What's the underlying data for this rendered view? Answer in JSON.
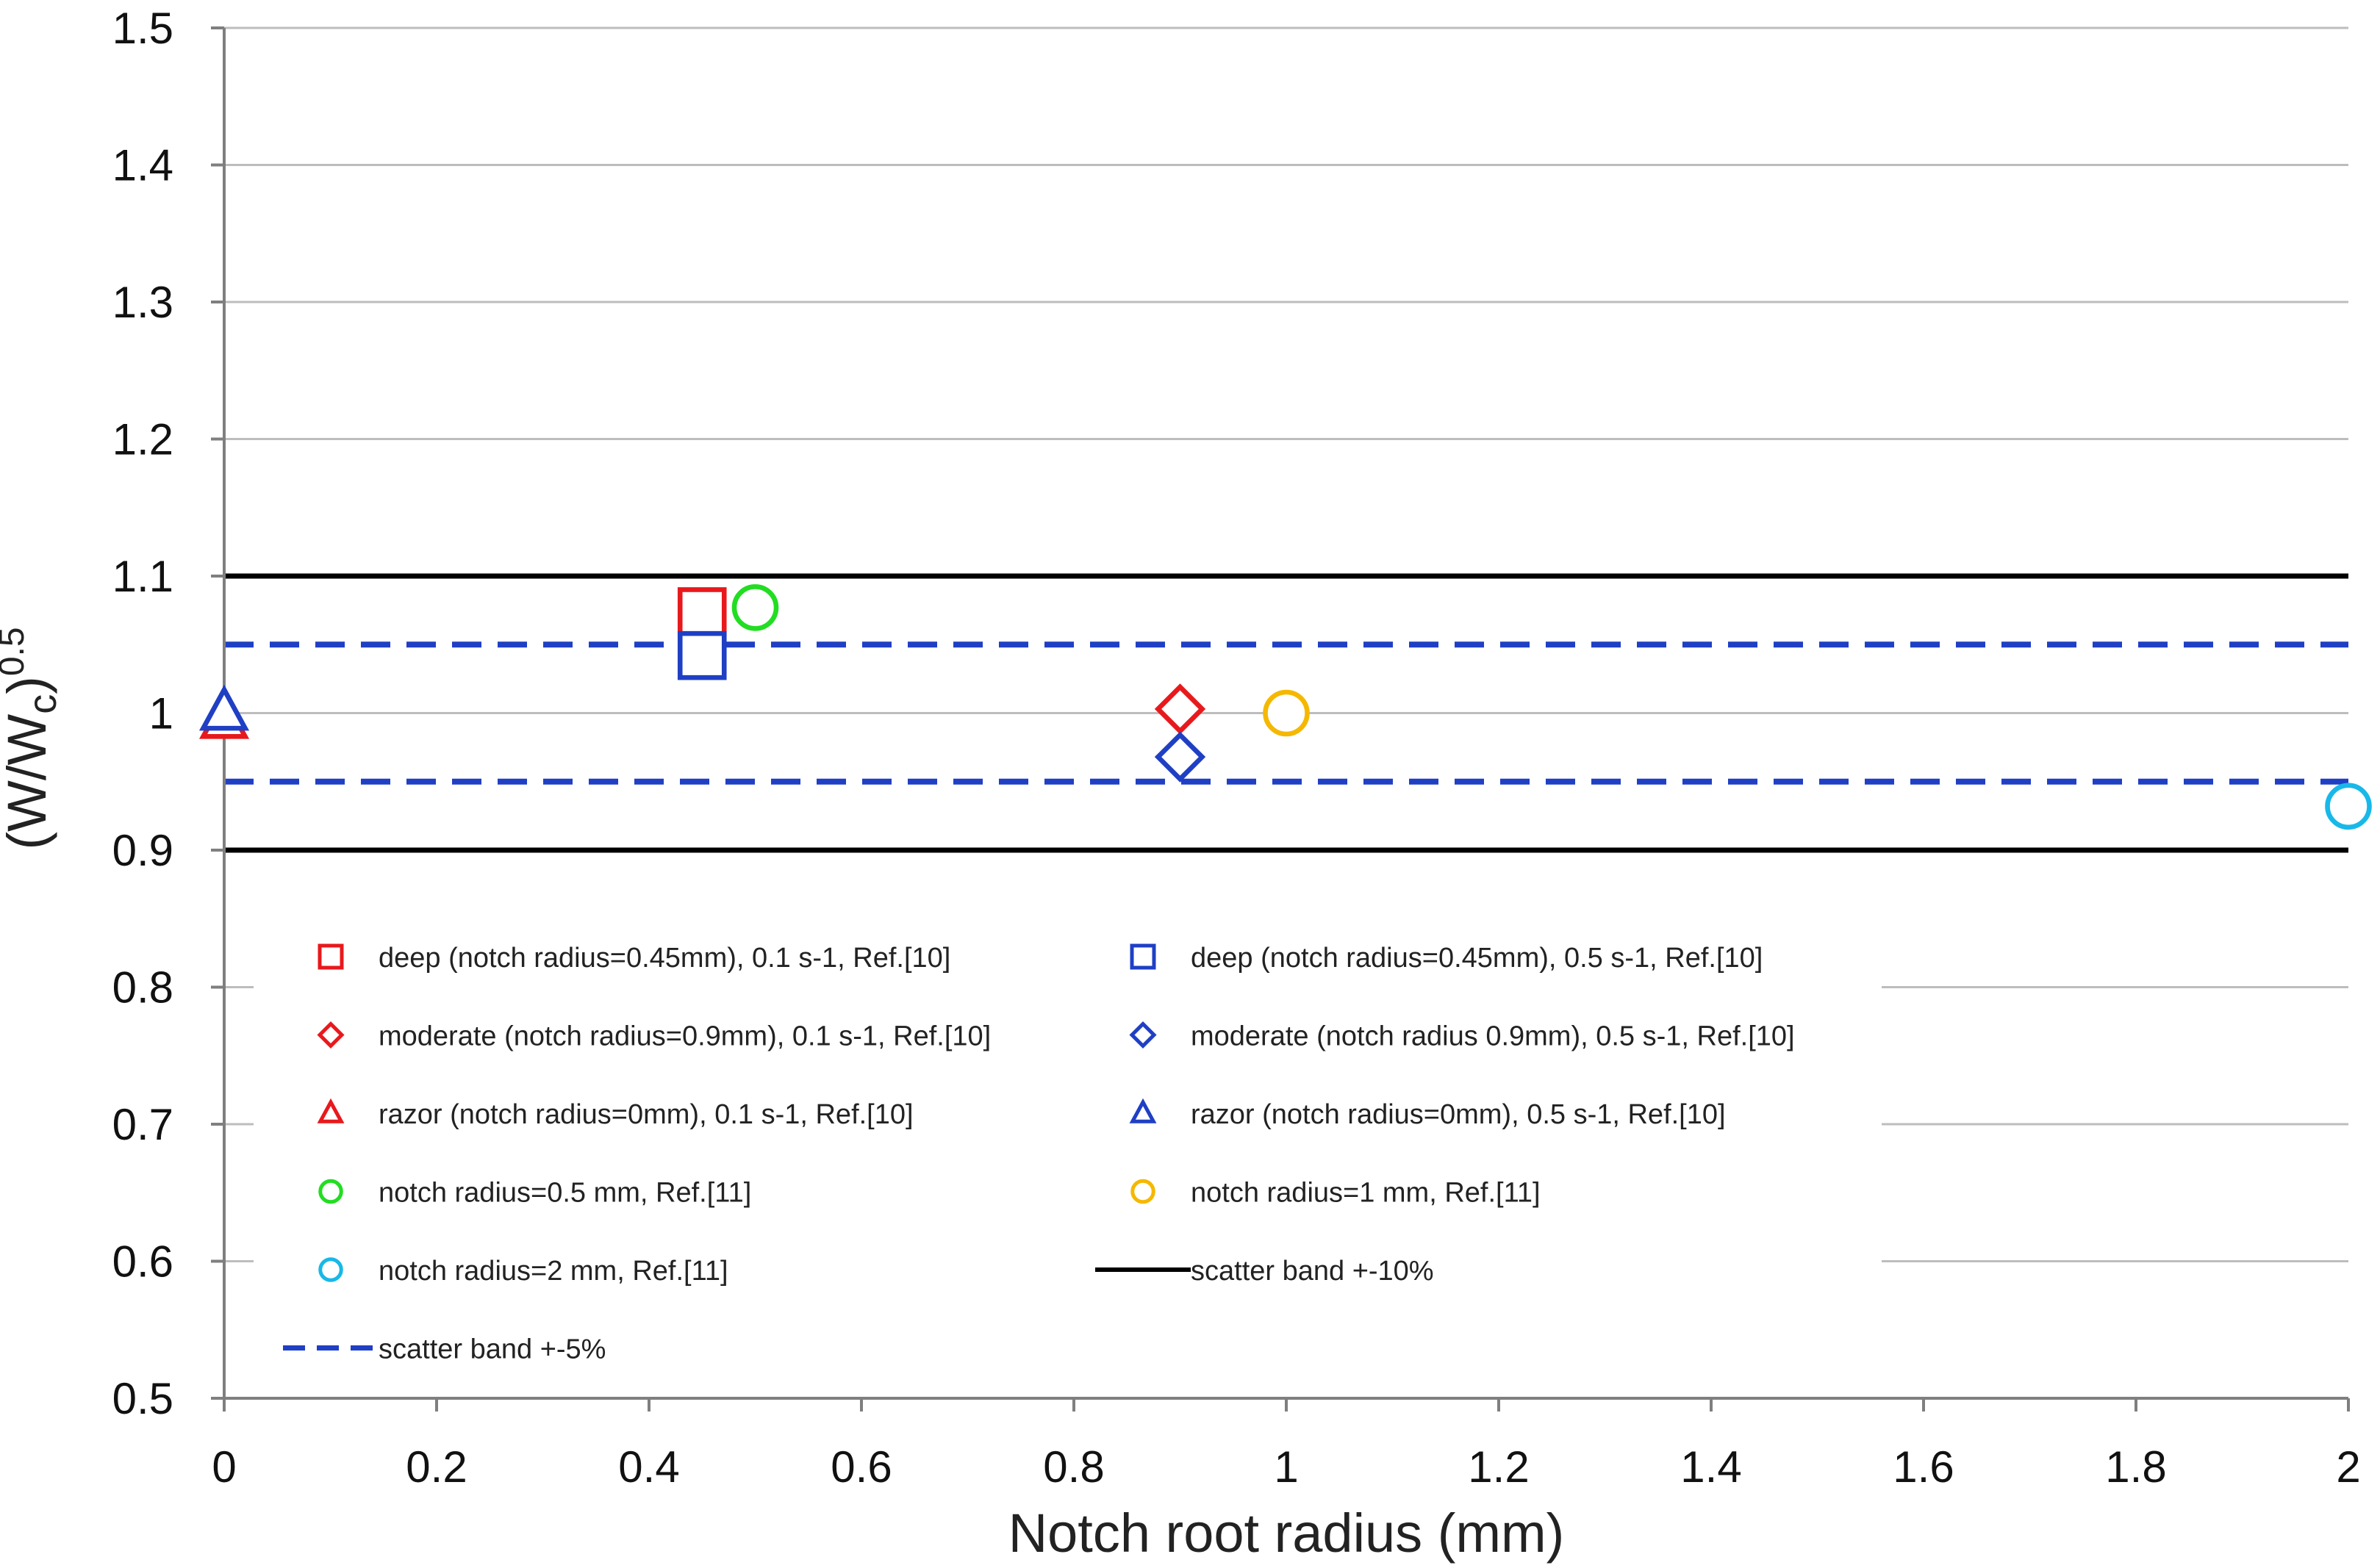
{
  "chart_data": {
    "type": "scatter",
    "title": "",
    "xlabel": "Notch root radius (mm)",
    "ylabel": {
      "base": "(W/W",
      "sub": "c",
      "tail": ")",
      "sup": "0.5"
    },
    "xlim": [
      0,
      2
    ],
    "ylim": [
      0.5,
      1.5
    ],
    "x_ticks": [
      {
        "value": 0,
        "label": "0"
      },
      {
        "value": 0.2,
        "label": "0.2"
      },
      {
        "value": 0.4,
        "label": "0.4"
      },
      {
        "value": 0.6,
        "label": "0.6"
      },
      {
        "value": 0.8,
        "label": "0.8"
      },
      {
        "value": 1,
        "label": "1"
      },
      {
        "value": 1.2,
        "label": "1.2"
      },
      {
        "value": 1.4,
        "label": "1.4"
      },
      {
        "value": 1.6,
        "label": "1.6"
      },
      {
        "value": 1.8,
        "label": "1.8"
      },
      {
        "value": 2,
        "label": "2"
      }
    ],
    "y_ticks": [
      {
        "value": 0.5,
        "label": "0.5"
      },
      {
        "value": 0.6,
        "label": "0.6"
      },
      {
        "value": 0.7,
        "label": "0.7"
      },
      {
        "value": 0.8,
        "label": "0.8"
      },
      {
        "value": 0.9,
        "label": "0.9"
      },
      {
        "value": 1.0,
        "label": "1"
      },
      {
        "value": 1.1,
        "label": "1.1"
      },
      {
        "value": 1.2,
        "label": "1.2"
      },
      {
        "value": 1.3,
        "label": "1.3"
      },
      {
        "value": 1.4,
        "label": "1.4"
      },
      {
        "value": 1.5,
        "label": "1.5"
      }
    ],
    "grid": true,
    "series": [
      {
        "name": "deep (notch radius=0.45mm), 0.1 s-1, Ref.[10]",
        "marker": "square",
        "color": "#e8191c",
        "points": [
          {
            "x": 0.45,
            "y": 1.074
          }
        ]
      },
      {
        "name": "deep (notch radius=0.45mm), 0.5 s-1, Ref.[10]",
        "marker": "square",
        "color": "#1f3fc4",
        "points": [
          {
            "x": 0.45,
            "y": 1.042
          }
        ]
      },
      {
        "name": "moderate (notch radius=0.9mm), 0.1 s-1, Ref.[10]",
        "marker": "diamond",
        "color": "#e8191c",
        "points": [
          {
            "x": 0.9,
            "y": 1.003
          }
        ]
      },
      {
        "name": "moderate (notch radius 0.9mm), 0.5 s-1, Ref.[10]",
        "marker": "diamond",
        "color": "#1f3fc4",
        "points": [
          {
            "x": 0.9,
            "y": 0.968
          }
        ]
      },
      {
        "name": "razor (notch radius=0mm), 0.1 s-1, Ref.[10]",
        "marker": "triangle",
        "color": "#e8191c",
        "points": [
          {
            "x": 0.0,
            "y": 0.995
          }
        ]
      },
      {
        "name": "razor (notch radius=0mm), 0.5 s-1, Ref.[10]",
        "marker": "triangle",
        "color": "#1f3fc4",
        "points": [
          {
            "x": 0.0,
            "y": 1.001
          }
        ]
      },
      {
        "name": "notch radius=0.5 mm, Ref.[11]",
        "marker": "circle",
        "color": "#22dd22",
        "points": [
          {
            "x": 0.5,
            "y": 1.077
          }
        ]
      },
      {
        "name": "notch radius=1 mm, Ref.[11]",
        "marker": "circle",
        "color": "#f5b800",
        "points": [
          {
            "x": 1.0,
            "y": 1.0
          }
        ]
      },
      {
        "name": "notch radius=2 mm, Ref.[11]",
        "marker": "circle",
        "color": "#18b8e8",
        "points": [
          {
            "x": 2.0,
            "y": 0.932
          }
        ]
      }
    ],
    "reference_lines": [
      {
        "name": "scatter band +-10%",
        "style": "solid",
        "color": "#000000",
        "values": [
          1.1,
          0.9
        ]
      },
      {
        "name": "scatter band +-5%",
        "style": "dashed",
        "color": "#1f3fc4",
        "values": [
          1.05,
          0.95
        ]
      }
    ],
    "legend": {
      "placement": "lower-left inside plot",
      "columns": 2,
      "order": [
        "deep (notch radius=0.45mm), 0.1 s-1, Ref.[10]",
        "deep (notch radius=0.45mm), 0.5 s-1, Ref.[10]",
        "moderate (notch radius=0.9mm), 0.1 s-1, Ref.[10]",
        "moderate (notch radius 0.9mm), 0.5 s-1, Ref.[10]",
        "razor (notch radius=0mm), 0.1 s-1, Ref.[10]",
        "razor (notch radius=0mm), 0.5 s-1, Ref.[10]",
        "notch radius=0.5 mm, Ref.[11]",
        "notch radius=1 mm, Ref.[11]",
        "notch radius=2 mm, Ref.[11]",
        "scatter band +-10%",
        "scatter band +-5%"
      ]
    }
  }
}
